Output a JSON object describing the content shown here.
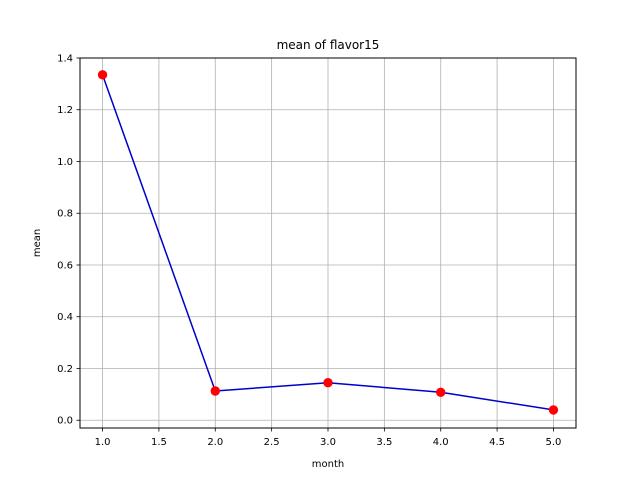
{
  "chart_data": {
    "type": "line",
    "title": "mean of flavor15",
    "xlabel": "month",
    "ylabel": "mean",
    "xlim": [
      0.8,
      5.2
    ],
    "ylim": [
      -0.03,
      1.4
    ],
    "xticks": [
      1.0,
      1.5,
      2.0,
      2.5,
      3.0,
      3.5,
      4.0,
      4.5,
      5.0
    ],
    "xtick_labels": [
      "1.0",
      "1.5",
      "2.0",
      "2.5",
      "3.0",
      "3.5",
      "4.0",
      "4.5",
      "5.0"
    ],
    "yticks": [
      0.0,
      0.2,
      0.4,
      0.6,
      0.8,
      1.0,
      1.2,
      1.4
    ],
    "ytick_labels": [
      "0.0",
      "0.2",
      "0.4",
      "0.6",
      "0.8",
      "1.0",
      "1.2",
      "1.4"
    ],
    "grid": true,
    "legend": "none",
    "series": [
      {
        "x": [
          1,
          2,
          3,
          4,
          5
        ],
        "values": [
          1.335,
          0.113,
          0.145,
          0.108,
          0.04
        ],
        "line_color": "#0000cc",
        "marker_color": "#ff0000"
      }
    ]
  }
}
